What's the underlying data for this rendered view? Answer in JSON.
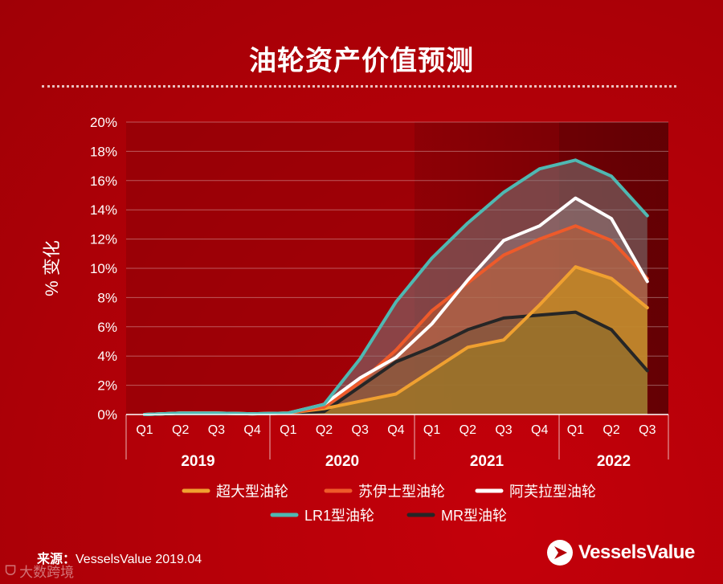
{
  "header": {
    "title": "油轮资产价值预测"
  },
  "footer": {
    "source_label": "来源：",
    "source_text": "VesselsValue 2019.04",
    "brand": "VesselsValue",
    "watermark": "大数跨境"
  },
  "colors": {
    "vlcc": "#f0a030",
    "suezmax": "#ee5a2a",
    "aframax": "#ffffff",
    "lr1": "#4fb8b2",
    "mr": "#262626"
  },
  "chart_data": {
    "type": "area",
    "title": "油轮资产价值预测",
    "ylabel": "% 变化",
    "xlabel": "",
    "ylim": [
      0,
      20
    ],
    "yticks": [
      "0%",
      "2%",
      "4%",
      "6%",
      "8%",
      "10%",
      "12%",
      "14%",
      "16%",
      "18%",
      "20%"
    ],
    "categories": [
      "Q1",
      "Q2",
      "Q3",
      "Q4",
      "Q1",
      "Q2",
      "Q3",
      "Q4",
      "Q1",
      "Q2",
      "Q3",
      "Q4",
      "Q1",
      "Q2",
      "Q3"
    ],
    "years": [
      {
        "label": "2019",
        "quarters": 4
      },
      {
        "label": "2020",
        "quarters": 4
      },
      {
        "label": "2021",
        "quarters": 4
      },
      {
        "label": "2022",
        "quarters": 3
      }
    ],
    "legend_position": "bottom",
    "series": [
      {
        "name": "LR1型油轮",
        "key": "lr1",
        "values": [
          0,
          0.1,
          0.1,
          0.05,
          0.1,
          0.7,
          3.8,
          7.7,
          10.7,
          13.1,
          15.2,
          16.8,
          17.4,
          16.3,
          13.6
        ]
      },
      {
        "name": "阿芙拉型油轮",
        "key": "aframax",
        "values": [
          0,
          0.1,
          0.1,
          0.05,
          0.1,
          0.7,
          2.5,
          3.9,
          6.2,
          9.2,
          11.9,
          12.9,
          14.8,
          13.4,
          9.1
        ]
      },
      {
        "name": "苏伊士型油轮",
        "key": "suezmax",
        "values": [
          0,
          0.1,
          0.1,
          0.05,
          0.1,
          0.5,
          2.2,
          4.4,
          7.1,
          9.0,
          10.9,
          12.0,
          12.9,
          11.9,
          9.3
        ]
      },
      {
        "name": "超大型油轮",
        "key": "vlcc",
        "values": [
          0,
          0.1,
          0.1,
          0.05,
          0.1,
          0.4,
          0.9,
          1.4,
          3.0,
          4.6,
          5.1,
          7.5,
          10.1,
          9.3,
          7.3
        ]
      },
      {
        "name": "MR型油轮",
        "key": "mr",
        "values": [
          0,
          0.05,
          0.05,
          0.05,
          0.1,
          0.2,
          1.9,
          3.6,
          4.6,
          5.8,
          6.6,
          6.8,
          7.0,
          5.8,
          3.0
        ]
      }
    ],
    "legend": [
      {
        "name": "超大型油轮",
        "key": "vlcc"
      },
      {
        "name": "苏伊士型油轮",
        "key": "suezmax"
      },
      {
        "name": "阿芙拉型油轮",
        "key": "aframax"
      },
      {
        "name": "LR1型油轮",
        "key": "lr1"
      },
      {
        "name": "MR型油轮",
        "key": "mr"
      }
    ]
  }
}
